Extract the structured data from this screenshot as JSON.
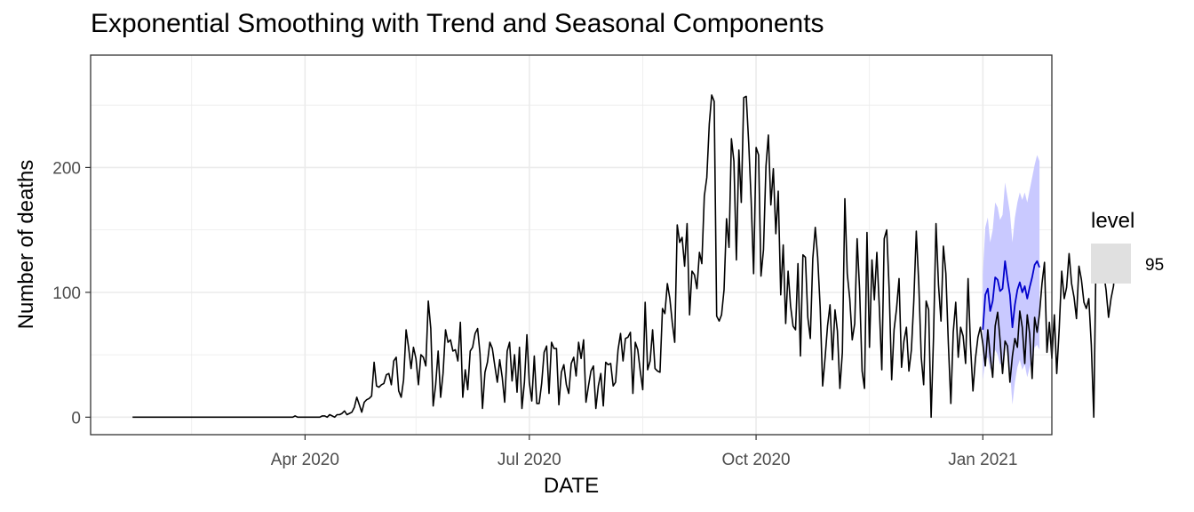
{
  "chart_data": {
    "type": "line",
    "title": "Exponential Smoothing with Trend and Seasonal Components",
    "xlabel": "DATE",
    "ylabel": "Number of deaths",
    "x_range": [
      "2020-01-05",
      "2021-01-29"
    ],
    "ylim": [
      -14,
      290
    ],
    "x_ticks": [
      {
        "date": "2020-04-01",
        "label": "Apr 2020"
      },
      {
        "date": "2020-07-01",
        "label": "Jul 2020"
      },
      {
        "date": "2020-10-01",
        "label": "Oct 2020"
      },
      {
        "date": "2021-01-01",
        "label": "Jan 2021"
      }
    ],
    "x_minor_ticks": [
      "2020-02-15",
      "2020-05-16",
      "2020-08-16",
      "2020-11-16"
    ],
    "y_ticks": [
      0,
      100,
      200
    ],
    "y_minor_ticks": [
      50,
      150,
      250
    ],
    "grid": true,
    "legend": {
      "title": "level",
      "entries": [
        "95"
      ],
      "position": "right"
    },
    "colors": {
      "history": "#000000",
      "forecast": "#0000cc",
      "band": "#c9c9ff",
      "legend_key": "#e0e0e0",
      "grid": "#ebebeb"
    },
    "history": {
      "start_date": "2020-01-22",
      "values": [
        0,
        0,
        0,
        0,
        0,
        0,
        0,
        0,
        0,
        0,
        0,
        0,
        0,
        0,
        0,
        0,
        0,
        0,
        0,
        0,
        0,
        0,
        0,
        0,
        0,
        0,
        0,
        0,
        0,
        0,
        0,
        0,
        0,
        0,
        0,
        0,
        0,
        0,
        0,
        0,
        0,
        0,
        0,
        0,
        0,
        0,
        0,
        0,
        0,
        0,
        0,
        0,
        0,
        0,
        0,
        0,
        0,
        0,
        0,
        0,
        0,
        0,
        0,
        0,
        0,
        0,
        1,
        0,
        0,
        0,
        0,
        0,
        0,
        0,
        0,
        0,
        0,
        1,
        1,
        0,
        2,
        1,
        0,
        2,
        2,
        3,
        5,
        2,
        3,
        4,
        8,
        16,
        10,
        4,
        12,
        14,
        15,
        17,
        44,
        25,
        24,
        26,
        27,
        34,
        35,
        26,
        45,
        48,
        21,
        16,
        30,
        70,
        56,
        39,
        56,
        47,
        26,
        50,
        48,
        41,
        93,
        71,
        9,
        26,
        53,
        16,
        35,
        70,
        60,
        62,
        53,
        54,
        45,
        76,
        16,
        38,
        22,
        53,
        56,
        67,
        71,
        51,
        7,
        36,
        44,
        60,
        55,
        41,
        28,
        46,
        32,
        12,
        53,
        60,
        29,
        50,
        20,
        56,
        7,
        28,
        66,
        28,
        13,
        49,
        11,
        11,
        27,
        52,
        57,
        19,
        60,
        55,
        55,
        10,
        36,
        42,
        26,
        19,
        43,
        48,
        33,
        60,
        47,
        62,
        12,
        25,
        37,
        41,
        7,
        25,
        35,
        9,
        44,
        42,
        43,
        25,
        28,
        54,
        67,
        45,
        63,
        64,
        68,
        19,
        60,
        54,
        37,
        22,
        92,
        38,
        45,
        70,
        39,
        37,
        36,
        87,
        83,
        107,
        95,
        76,
        60,
        154,
        140,
        144,
        121,
        155,
        82,
        117,
        114,
        103,
        132,
        123,
        177,
        192,
        235,
        258,
        253,
        81,
        77,
        82,
        102,
        159,
        136,
        223,
        205,
        126,
        214,
        172,
        256,
        257,
        219,
        174,
        115,
        216,
        210,
        113,
        134,
        201,
        226,
        170,
        199,
        147,
        181,
        98,
        138,
        75,
        117,
        89,
        73,
        70,
        123,
        49,
        130,
        128,
        80,
        63,
        127,
        152,
        128,
        88,
        25,
        48,
        73,
        90,
        46,
        86,
        69,
        23,
        52,
        175,
        115,
        95,
        62,
        75,
        143,
        102,
        37,
        23,
        148,
        56,
        126,
        94,
        132,
        88,
        38,
        143,
        150,
        102,
        30,
        70,
        87,
        111,
        40,
        61,
        72,
        37,
        54,
        93,
        149,
        107,
        48,
        26,
        93,
        86,
        0,
        64,
        155,
        106,
        77,
        137,
        115,
        59,
        11,
        68,
        92,
        48,
        72,
        65,
        43,
        111,
        58,
        21,
        47,
        64,
        72,
        59,
        41,
        70,
        49,
        32,
        73,
        84,
        62,
        35,
        61,
        57,
        28,
        49,
        63,
        56,
        85,
        72,
        43,
        82,
        67,
        31,
        80,
        68,
        83,
        107,
        124,
        52,
        76,
        47,
        82,
        35,
        71,
        117,
        95,
        104,
        131,
        107,
        96,
        79,
        121,
        110,
        92,
        87,
        95,
        58,
        0,
        138,
        123,
        109,
        116,
        102,
        80,
        95,
        105,
        130,
        136
      ]
    },
    "forecast": {
      "start_date": "2021-01-01",
      "values": [
        70,
        98,
        103,
        85,
        93,
        112,
        110,
        101,
        103,
        125,
        110,
        98,
        72,
        90,
        102,
        108,
        100,
        105,
        95,
        104,
        112,
        122,
        125,
        120
      ],
      "lower": [
        30,
        45,
        48,
        38,
        44,
        54,
        50,
        42,
        44,
        60,
        48,
        38,
        10,
        28,
        40,
        46,
        38,
        42,
        32,
        40,
        46,
        56,
        58,
        54
      ],
      "upper": [
        115,
        152,
        160,
        140,
        150,
        172,
        168,
        158,
        162,
        188,
        176,
        164,
        140,
        160,
        172,
        180,
        174,
        180,
        172,
        182,
        192,
        202,
        210,
        205
      ]
    }
  }
}
